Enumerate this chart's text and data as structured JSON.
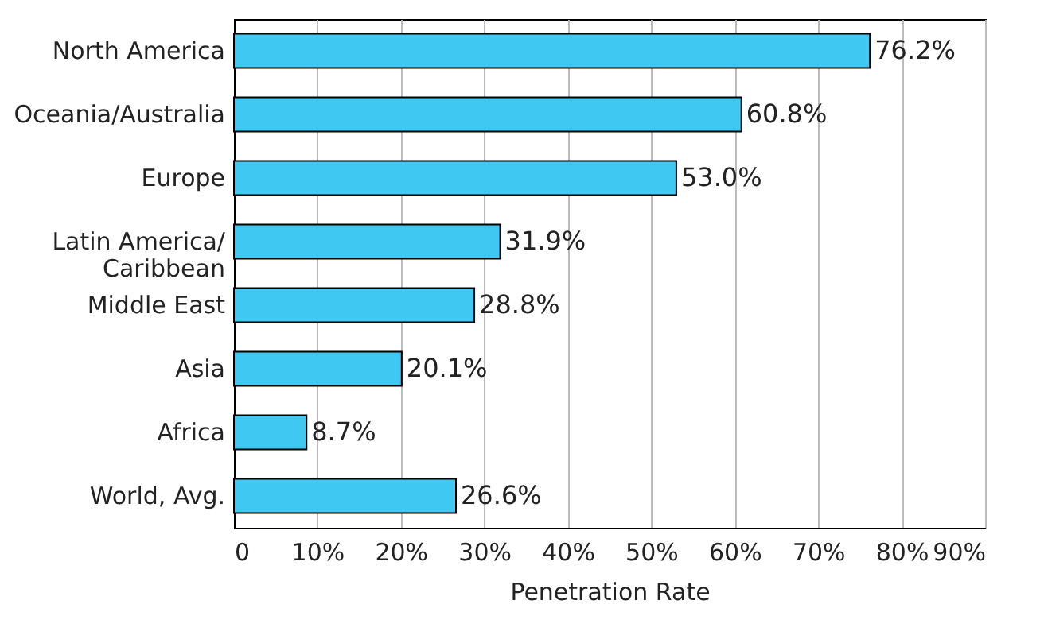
{
  "chart_data": {
    "type": "bar",
    "orientation": "horizontal",
    "xlabel": "Penetration Rate",
    "categories": [
      "North America",
      "Oceania/Australia",
      "Europe",
      "Latin America/\nCaribbean",
      "Middle East",
      "Asia",
      "Africa",
      "World, Avg."
    ],
    "values": [
      76.2,
      60.8,
      53.0,
      31.9,
      28.8,
      20.1,
      8.7,
      26.6
    ],
    "value_labels": [
      "76.2%",
      "60.8%",
      "53.0%",
      "31.9%",
      "28.8%",
      "20.1%",
      "8.7%",
      "26.6%"
    ],
    "color": "#3fc8f2",
    "xlim": [
      0,
      90
    ],
    "xticks": [
      0,
      {
        "value": 10,
        "label": "10%"
      },
      {
        "value": 20,
        "label": "20%"
      },
      {
        "value": 30,
        "label": "30%"
      },
      {
        "value": 40,
        "label": "40%"
      },
      {
        "value": 50,
        "label": "50%"
      },
      {
        "value": 60,
        "label": "60%"
      },
      {
        "value": 70,
        "label": "70%"
      },
      {
        "value": 80,
        "label": "80%"
      },
      {
        "value": 90,
        "label": "90%"
      }
    ],
    "grid": "x"
  }
}
